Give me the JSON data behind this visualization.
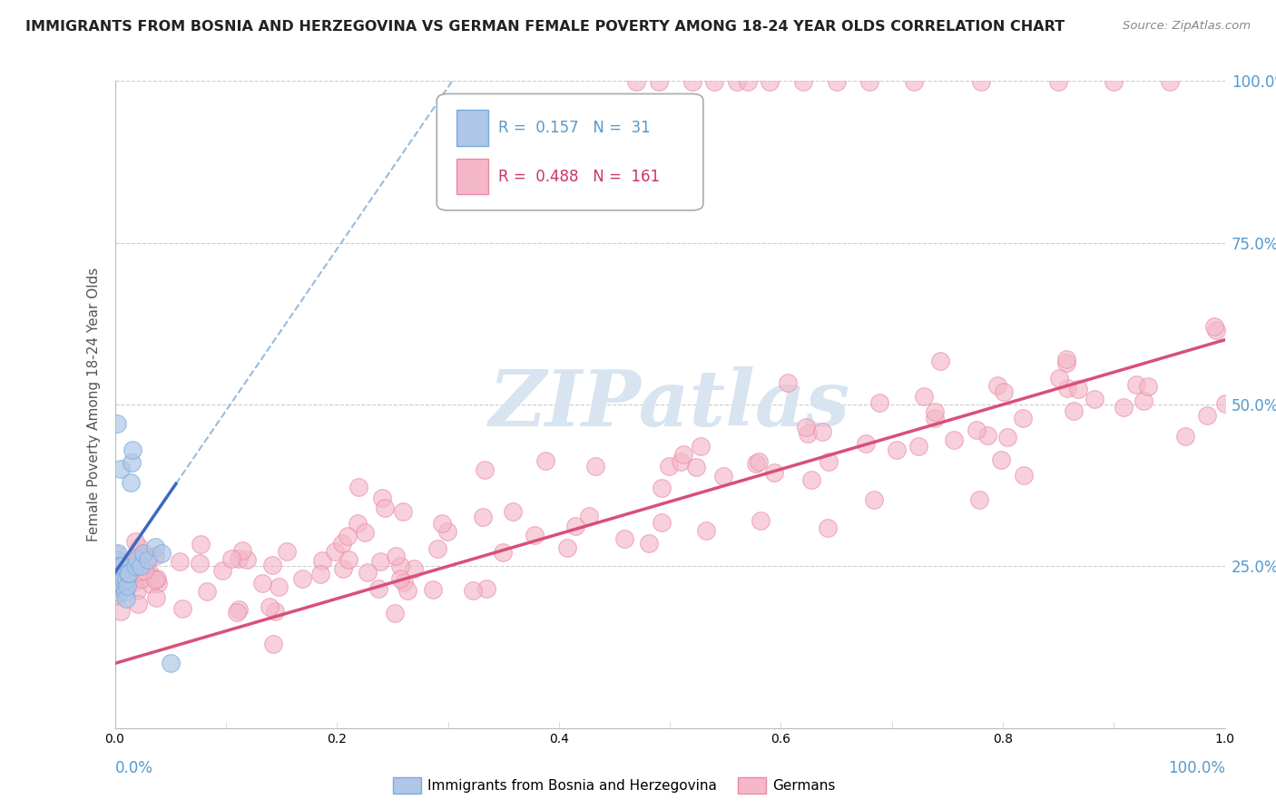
{
  "title": "IMMIGRANTS FROM BOSNIA AND HERZEGOVINA VS GERMAN FEMALE POVERTY AMONG 18-24 YEAR OLDS CORRELATION CHART",
  "source": "Source: ZipAtlas.com",
  "ylabel": "Female Poverty Among 18-24 Year Olds",
  "legend_blue_label": "Immigrants from Bosnia and Herzegovina",
  "legend_pink_label": "Germans",
  "R_blue": 0.157,
  "N_blue": 31,
  "R_pink": 0.488,
  "N_pink": 161,
  "blue_fill_color": "#aec6e8",
  "pink_fill_color": "#f4b8c8",
  "blue_edge_color": "#7aabdb",
  "pink_edge_color": "#e88aaa",
  "blue_line_color": "#3a6abf",
  "pink_line_color": "#d94f7a",
  "dash_line_color": "#99bbdd",
  "watermark_color": "#d8e4f0",
  "watermark_text": "ZIPatlas",
  "bg_color": "#ffffff",
  "grid_color": "#cccccc",
  "tick_color": "#5599cc",
  "title_color": "#222222",
  "ylabel_color": "#555555",
  "source_color": "#888888"
}
